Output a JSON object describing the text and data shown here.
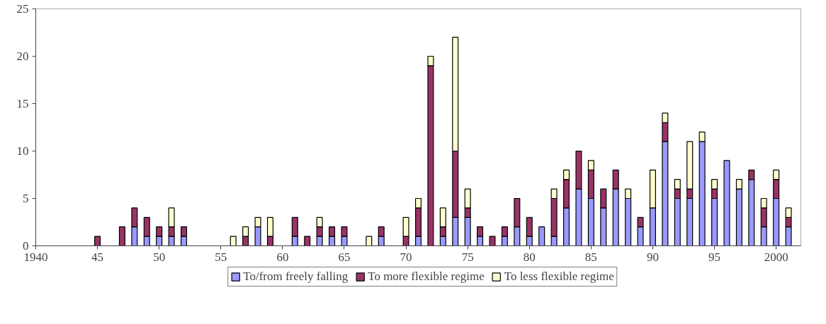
{
  "chart_data": {
    "type": "bar",
    "stacked": true,
    "x": [
      1945,
      1947,
      1948,
      1949,
      1950,
      1951,
      1952,
      1956,
      1957,
      1958,
      1959,
      1961,
      1962,
      1963,
      1964,
      1965,
      1967,
      1968,
      1970,
      1971,
      1972,
      1973,
      1974,
      1975,
      1976,
      1977,
      1978,
      1979,
      1980,
      1981,
      1982,
      1983,
      1984,
      1985,
      1986,
      1987,
      1988,
      1989,
      1990,
      1991,
      1992,
      1993,
      1994,
      1995,
      1996,
      1997,
      1998,
      1999,
      2000,
      2001
    ],
    "series": [
      {
        "name": "To/from freely falling",
        "color": "#9999ff",
        "values": [
          null,
          null,
          2,
          1,
          1,
          1,
          1,
          null,
          null,
          2,
          null,
          1,
          null,
          1,
          1,
          1,
          null,
          1,
          null,
          1,
          null,
          1,
          3,
          3,
          1,
          null,
          1,
          2,
          1,
          2,
          1,
          4,
          6,
          5,
          4,
          6,
          5,
          2,
          4,
          11,
          5,
          5,
          11,
          5,
          9,
          6,
          7,
          2,
          5,
          2
        ]
      },
      {
        "name": "To more flexible regime",
        "color": "#993366",
        "values": [
          1,
          2,
          2,
          2,
          1,
          1,
          1,
          null,
          1,
          null,
          1,
          2,
          1,
          1,
          1,
          1,
          null,
          1,
          1,
          3,
          19,
          1,
          7,
          1,
          1,
          1,
          1,
          3,
          2,
          null,
          4,
          3,
          4,
          3,
          2,
          2,
          null,
          1,
          null,
          2,
          1,
          1,
          null,
          1,
          null,
          null,
          1,
          2,
          2,
          1
        ]
      },
      {
        "name": "To less flexible regime",
        "color": "#ffffcc",
        "values": [
          null,
          null,
          null,
          null,
          null,
          2,
          null,
          1,
          1,
          1,
          2,
          null,
          null,
          1,
          null,
          null,
          1,
          null,
          2,
          1,
          1,
          2,
          12,
          2,
          null,
          null,
          null,
          null,
          null,
          null,
          1,
          1,
          null,
          1,
          null,
          null,
          1,
          null,
          4,
          1,
          1,
          5,
          1,
          1,
          null,
          1,
          null,
          1,
          1,
          1
        ]
      }
    ],
    "xlim": [
      1940,
      2002
    ],
    "xticks": [
      1940,
      {
        "value": 1945,
        "label": "45"
      },
      {
        "value": 1950,
        "label": "50"
      },
      {
        "value": 1955,
        "label": "55"
      },
      {
        "value": 1960,
        "label": "60"
      },
      {
        "value": 1965,
        "label": "65"
      },
      {
        "value": 1970,
        "label": "70"
      },
      {
        "value": 1975,
        "label": "75"
      },
      {
        "value": 1980,
        "label": "80"
      },
      {
        "value": 1985,
        "label": "85"
      },
      {
        "value": 1990,
        "label": "90"
      },
      {
        "value": 1995,
        "label": "95"
      },
      2000
    ],
    "ylim": [
      0,
      25
    ],
    "yticks": [
      0,
      5,
      10,
      15,
      20,
      25
    ],
    "grid": false,
    "legend": "bottom"
  }
}
